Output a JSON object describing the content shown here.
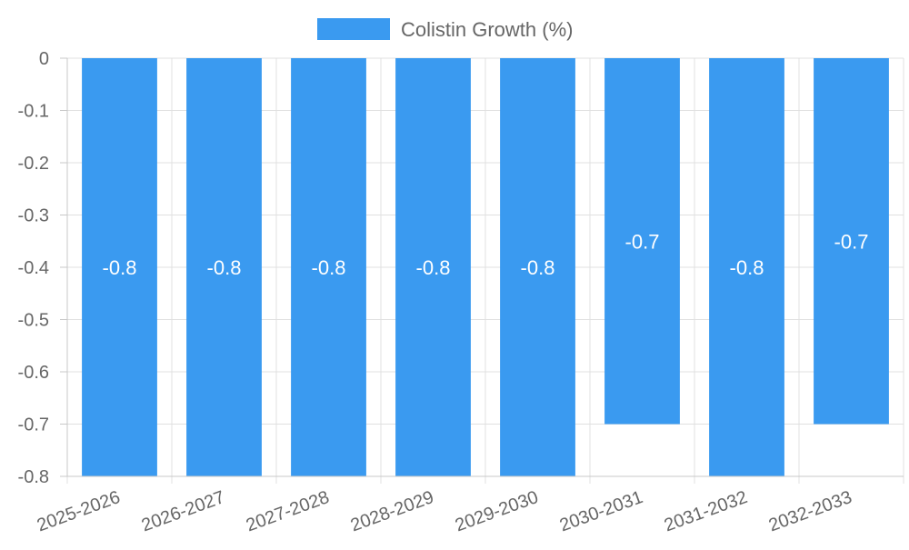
{
  "chart_data": {
    "type": "bar",
    "title": "",
    "xlabel": "",
    "ylabel": "",
    "categories": [
      "2025-2026",
      "2026-2027",
      "2027-2028",
      "2028-2029",
      "2029-2030",
      "2030-2031",
      "2031-2032",
      "2032-2033"
    ],
    "series": [
      {
        "name": "Colistin Growth (%)",
        "values": [
          -0.8,
          -0.8,
          -0.8,
          -0.8,
          -0.8,
          -0.7,
          -0.8,
          -0.7
        ],
        "color": "#3a9af0"
      }
    ],
    "data_labels": [
      "-0.8",
      "-0.8",
      "-0.8",
      "-0.8",
      "-0.8",
      "-0.7",
      "-0.8",
      "-0.7"
    ],
    "ylim": [
      -0.8,
      0
    ],
    "yticks": [
      0,
      -0.1,
      -0.2,
      -0.3,
      -0.4,
      -0.5,
      -0.6,
      -0.7,
      -0.8
    ],
    "ytick_labels": [
      "0",
      "-0.1",
      "-0.2",
      "-0.3",
      "-0.4",
      "-0.5",
      "-0.6",
      "-0.7",
      "-0.8"
    ],
    "grid": true,
    "legend_position": "top-center"
  }
}
